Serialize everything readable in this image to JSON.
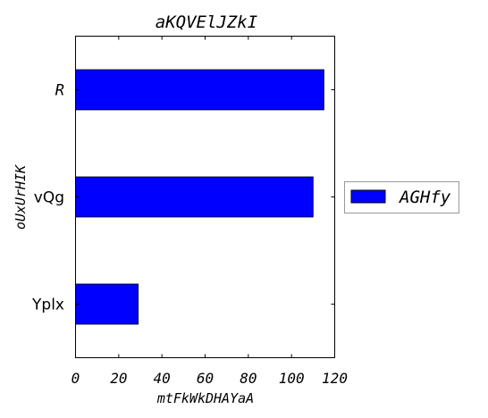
{
  "chart_data": {
    "type": "bar",
    "orientation": "horizontal",
    "title": "aKQVElJZkI",
    "xlabel": "mtFkWkDHAYaA",
    "ylabel": "oUxUrHIK",
    "categories": [
      "R",
      "vQg",
      "Yplx"
    ],
    "series": [
      {
        "name": "AGHfy",
        "values": [
          115,
          110,
          29
        ],
        "color": "#0000ff"
      }
    ],
    "xlim": [
      0,
      120
    ],
    "xticks": [
      "0",
      "20",
      "40",
      "60",
      "80",
      "100",
      "120"
    ],
    "grid": false,
    "legend_position": "right"
  }
}
